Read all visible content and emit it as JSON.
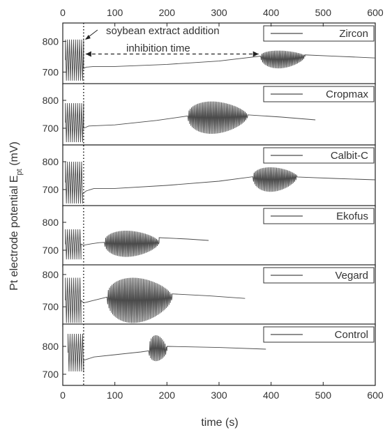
{
  "chart_data": {
    "type": "line",
    "xlabel": "time (s)",
    "ylabel": "Pt electrode potential E",
    "ylabel_sub": "pt",
    "ylabel_unit": " (mV)",
    "xlim": [
      0,
      600
    ],
    "x_ticks": [
      0,
      100,
      200,
      300,
      400,
      500,
      600
    ],
    "y_ticks": [
      700,
      800
    ],
    "grid": false,
    "addition_time": 40,
    "annotations": {
      "addition": "soybean extract addition",
      "inhibition": "inhibition time"
    },
    "series": [
      {
        "name": "Zircon",
        "ylim": [
          660,
          860
        ],
        "osc1": {
          "start": 5,
          "end": 40,
          "low": 672,
          "high": 806
        },
        "quiet": [
          [
            40,
            712
          ],
          [
            45,
            716
          ],
          [
            60,
            718
          ],
          [
            100,
            718
          ],
          [
            200,
            725
          ],
          [
            300,
            736
          ],
          [
            380,
            752
          ]
        ],
        "osc2": {
          "start": 380,
          "end": 465,
          "low": 712,
          "high": 770
        },
        "tail": [
          [
            465,
            756
          ],
          [
            520,
            752
          ],
          [
            600,
            746
          ]
        ]
      },
      {
        "name": "Cropmax",
        "ylim": [
          640,
          860
        ],
        "osc1": {
          "start": 5,
          "end": 40,
          "low": 650,
          "high": 790
        },
        "quiet": [
          [
            40,
            700
          ],
          [
            50,
            708
          ],
          [
            100,
            712
          ],
          [
            180,
            728
          ],
          [
            240,
            744
          ]
        ],
        "osc2": {
          "start": 240,
          "end": 355,
          "low": 680,
          "high": 796
        },
        "tail": [
          [
            355,
            748
          ],
          [
            420,
            740
          ],
          [
            485,
            730
          ]
        ]
      },
      {
        "name": "Calbit-C",
        "ylim": [
          640,
          860
        ],
        "osc1": {
          "start": 5,
          "end": 38,
          "low": 650,
          "high": 800
        },
        "quiet": [
          [
            38,
            685
          ],
          [
            45,
            695
          ],
          [
            60,
            704
          ],
          [
            100,
            704
          ],
          [
            200,
            715
          ],
          [
            300,
            730
          ],
          [
            365,
            746
          ]
        ],
        "osc2": {
          "start": 365,
          "end": 450,
          "low": 692,
          "high": 780
        },
        "tail": [
          [
            450,
            745
          ],
          [
            520,
            740
          ],
          [
            600,
            735
          ]
        ]
      },
      {
        "name": "Ekofus",
        "ylim": [
          640,
          860
        ],
        "osc1": {
          "start": 5,
          "end": 35,
          "low": 667,
          "high": 775
        },
        "quiet": [
          [
            35,
            722
          ],
          [
            40,
            718
          ],
          [
            55,
            723
          ],
          [
            70,
            727
          ],
          [
            80,
            728
          ]
        ],
        "osc2": {
          "start": 80,
          "end": 185,
          "low": 676,
          "high": 770
        },
        "tail": [
          [
            185,
            745
          ],
          [
            240,
            740
          ],
          [
            280,
            735
          ]
        ]
      },
      {
        "name": "Vegard",
        "ylim": [
          640,
          830
        ],
        "osc1": {
          "start": 5,
          "end": 35,
          "low": 650,
          "high": 790
        },
        "quiet": [
          [
            35,
            720
          ],
          [
            40,
            712
          ],
          [
            55,
            718
          ],
          [
            85,
            730
          ]
        ],
        "osc2": {
          "start": 85,
          "end": 210,
          "low": 650,
          "high": 790
        },
        "tail": [
          [
            210,
            740
          ],
          [
            280,
            734
          ],
          [
            350,
            726
          ]
        ]
      },
      {
        "name": "Control",
        "ylim": [
          660,
          880
        ],
        "osc1": {
          "start": 10,
          "end": 40,
          "low": 710,
          "high": 845
        },
        "quiet": [
          [
            40,
            750
          ],
          [
            60,
            762
          ],
          [
            100,
            770
          ],
          [
            150,
            780
          ],
          [
            165,
            784
          ]
        ],
        "osc2": {
          "start": 165,
          "end": 200,
          "low": 747,
          "high": 840
        },
        "tail": [
          [
            200,
            800
          ],
          [
            300,
            796
          ],
          [
            390,
            790
          ]
        ]
      }
    ]
  }
}
